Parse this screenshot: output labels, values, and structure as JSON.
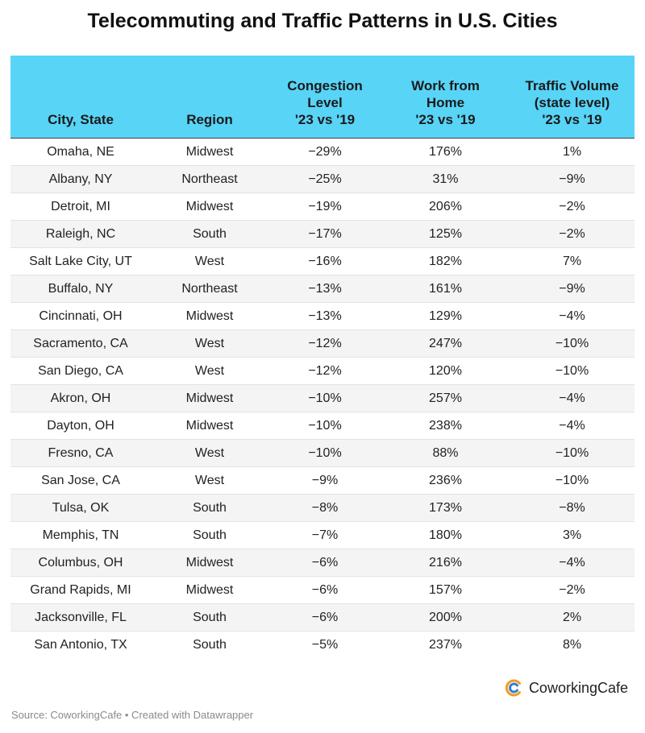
{
  "title": "Telecommuting and Traffic Patterns in U.S. Cities",
  "table": {
    "headers": [
      [
        "City, State"
      ],
      [
        "Region"
      ],
      [
        "Congestion",
        "Level",
        "'23 vs '19"
      ],
      [
        "Work from",
        "Home",
        "'23 vs '19"
      ],
      [
        "Traffic Volume",
        "(state level)",
        "'23 vs '19"
      ]
    ],
    "rows": [
      [
        "Omaha, NE",
        "Midwest",
        "−29%",
        "176%",
        "1%"
      ],
      [
        "Albany, NY",
        "Northeast",
        "−25%",
        "31%",
        "−9%"
      ],
      [
        "Detroit, MI",
        "Midwest",
        "−19%",
        "206%",
        "−2%"
      ],
      [
        "Raleigh, NC",
        "South",
        "−17%",
        "125%",
        "−2%"
      ],
      [
        "Salt Lake City, UT",
        "West",
        "−16%",
        "182%",
        "7%"
      ],
      [
        "Buffalo, NY",
        "Northeast",
        "−13%",
        "161%",
        "−9%"
      ],
      [
        "Cincinnati, OH",
        "Midwest",
        "−13%",
        "129%",
        "−4%"
      ],
      [
        "Sacramento, CA",
        "West",
        "−12%",
        "247%",
        "−10%"
      ],
      [
        "San Diego, CA",
        "West",
        "−12%",
        "120%",
        "−10%"
      ],
      [
        "Akron, OH",
        "Midwest",
        "−10%",
        "257%",
        "−4%"
      ],
      [
        "Dayton, OH",
        "Midwest",
        "−10%",
        "238%",
        "−4%"
      ],
      [
        "Fresno, CA",
        "West",
        "−10%",
        "88%",
        "−10%"
      ],
      [
        "San Jose, CA",
        "West",
        "−9%",
        "236%",
        "−10%"
      ],
      [
        "Tulsa, OK",
        "South",
        "−8%",
        "173%",
        "−8%"
      ],
      [
        "Memphis, TN",
        "South",
        "−7%",
        "180%",
        "3%"
      ],
      [
        "Columbus, OH",
        "Midwest",
        "−6%",
        "216%",
        "−4%"
      ],
      [
        "Grand Rapids, MI",
        "Midwest",
        "−6%",
        "157%",
        "−2%"
      ],
      [
        "Jacksonville, FL",
        "South",
        "−6%",
        "200%",
        "2%"
      ],
      [
        "San Antonio, TX",
        "South",
        "−5%",
        "237%",
        "8%"
      ]
    ]
  },
  "chart_data": {
    "type": "table",
    "title": "Telecommuting and Traffic Patterns in U.S. Cities",
    "columns": [
      "City, State",
      "Region",
      "Congestion Level '23 vs '19",
      "Work from Home '23 vs '19",
      "Traffic Volume (state level) '23 vs '19"
    ],
    "rows": [
      [
        "Omaha, NE",
        "Midwest",
        -29,
        176,
        1
      ],
      [
        "Albany, NY",
        "Northeast",
        -25,
        31,
        -9
      ],
      [
        "Detroit, MI",
        "Midwest",
        -19,
        206,
        -2
      ],
      [
        "Raleigh, NC",
        "South",
        -17,
        125,
        -2
      ],
      [
        "Salt Lake City, UT",
        "West",
        -16,
        182,
        7
      ],
      [
        "Buffalo, NY",
        "Northeast",
        -13,
        161,
        -9
      ],
      [
        "Cincinnati, OH",
        "Midwest",
        -13,
        129,
        -4
      ],
      [
        "Sacramento, CA",
        "West",
        -12,
        247,
        -10
      ],
      [
        "San Diego, CA",
        "West",
        -12,
        120,
        -10
      ],
      [
        "Akron, OH",
        "Midwest",
        -10,
        257,
        -4
      ],
      [
        "Dayton, OH",
        "Midwest",
        -10,
        238,
        -4
      ],
      [
        "Fresno, CA",
        "West",
        -10,
        88,
        -10
      ],
      [
        "San Jose, CA",
        "West",
        -9,
        236,
        -10
      ],
      [
        "Tulsa, OK",
        "South",
        -8,
        173,
        -8
      ],
      [
        "Memphis, TN",
        "South",
        -7,
        180,
        3
      ],
      [
        "Columbus, OH",
        "Midwest",
        -6,
        216,
        -4
      ],
      [
        "Grand Rapids, MI",
        "Midwest",
        -6,
        157,
        -2
      ],
      [
        "Jacksonville, FL",
        "South",
        -6,
        200,
        2
      ],
      [
        "San Antonio, TX",
        "South",
        -5,
        237,
        8
      ]
    ]
  },
  "brand": {
    "name": "CoworkingCafe",
    "logo_icon": "coworkingcafe-logo-icon"
  },
  "source": "Source: CoworkingCafe • Created with Datawrapper",
  "colors": {
    "header_bg": "#58d4f7",
    "zebra": "#f4f4f4",
    "logo_orange": "#f39a1e",
    "logo_blue": "#2f7fd3"
  }
}
